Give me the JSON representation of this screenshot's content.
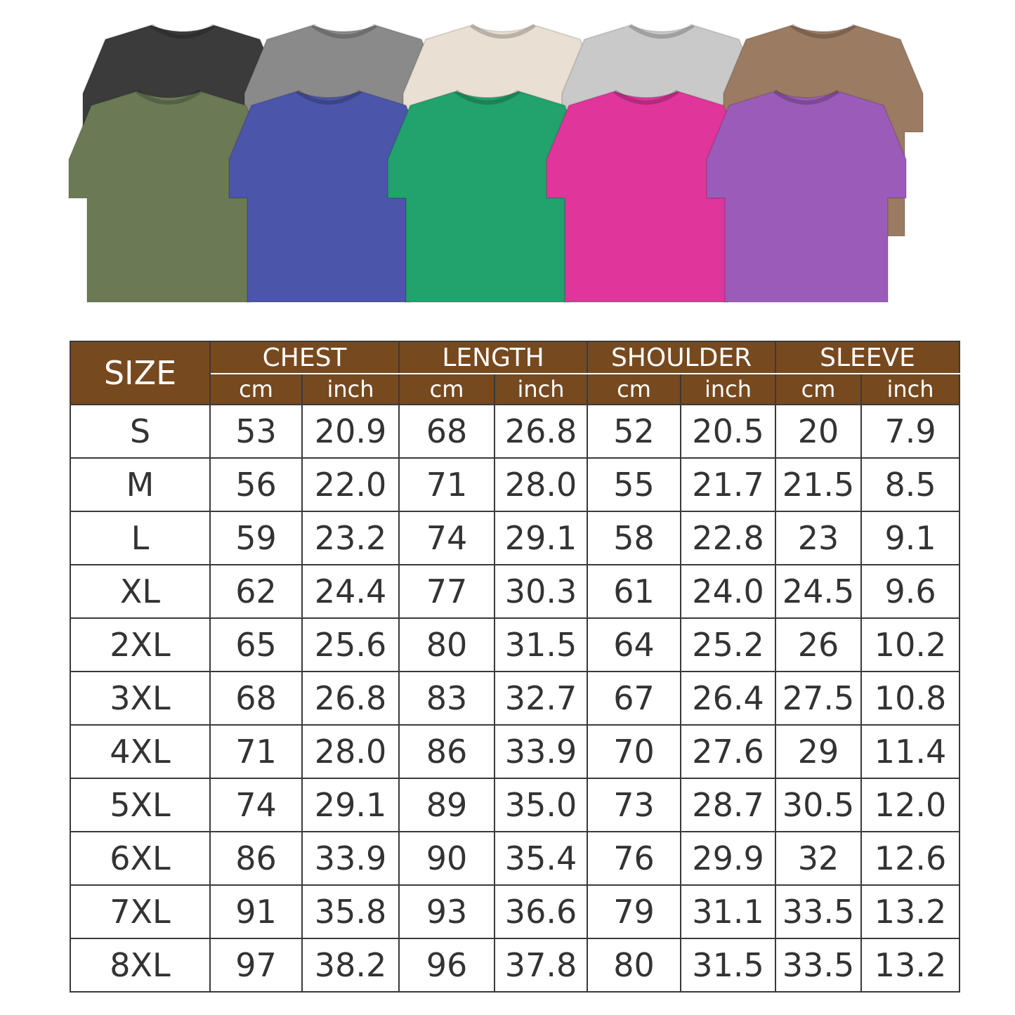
{
  "shirts": {
    "back_row": [
      {
        "color_name": "black",
        "hex": "#3b3b3b"
      },
      {
        "color_name": "gray",
        "hex": "#8a8a8a"
      },
      {
        "color_name": "cream",
        "hex": "#e9dfd2"
      },
      {
        "color_name": "light-gray",
        "hex": "#c9c9c9"
      },
      {
        "color_name": "brown",
        "hex": "#9c7b63"
      }
    ],
    "front_row": [
      {
        "color_name": "olive",
        "hex": "#6b7a55"
      },
      {
        "color_name": "blue",
        "hex": "#4b55aa"
      },
      {
        "color_name": "green",
        "hex": "#22a26c"
      },
      {
        "color_name": "pink",
        "hex": "#e0359b"
      },
      {
        "color_name": "purple",
        "hex": "#9b5cb9"
      }
    ]
  },
  "size_chart": {
    "header_color": "#77491f",
    "size_label": "SIZE",
    "groups": [
      "CHEST",
      "LENGTH",
      "SHOULDER",
      "SLEEVE"
    ],
    "units": [
      "cm",
      "inch"
    ],
    "rows": [
      [
        "S",
        "53",
        "20.9",
        "68",
        "26.8",
        "52",
        "20.5",
        "20",
        "7.9"
      ],
      [
        "M",
        "56",
        "22.0",
        "71",
        "28.0",
        "55",
        "21.7",
        "21.5",
        "8.5"
      ],
      [
        "L",
        "59",
        "23.2",
        "74",
        "29.1",
        "58",
        "22.8",
        "23",
        "9.1"
      ],
      [
        "XL",
        "62",
        "24.4",
        "77",
        "30.3",
        "61",
        "24.0",
        "24.5",
        "9.6"
      ],
      [
        "2XL",
        "65",
        "25.6",
        "80",
        "31.5",
        "64",
        "25.2",
        "26",
        "10.2"
      ],
      [
        "3XL",
        "68",
        "26.8",
        "83",
        "32.7",
        "67",
        "26.4",
        "27.5",
        "10.8"
      ],
      [
        "4XL",
        "71",
        "28.0",
        "86",
        "33.9",
        "70",
        "27.6",
        "29",
        "11.4"
      ],
      [
        "5XL",
        "74",
        "29.1",
        "89",
        "35.0",
        "73",
        "28.7",
        "30.5",
        "12.0"
      ],
      [
        "6XL",
        "86",
        "33.9",
        "90",
        "35.4",
        "76",
        "29.9",
        "32",
        "12.6"
      ],
      [
        "7XL",
        "91",
        "35.8",
        "93",
        "36.6",
        "79",
        "31.1",
        "33.5",
        "13.2"
      ],
      [
        "8XL",
        "97",
        "38.2",
        "96",
        "37.8",
        "80",
        "31.5",
        "33.5",
        "13.2"
      ]
    ]
  }
}
